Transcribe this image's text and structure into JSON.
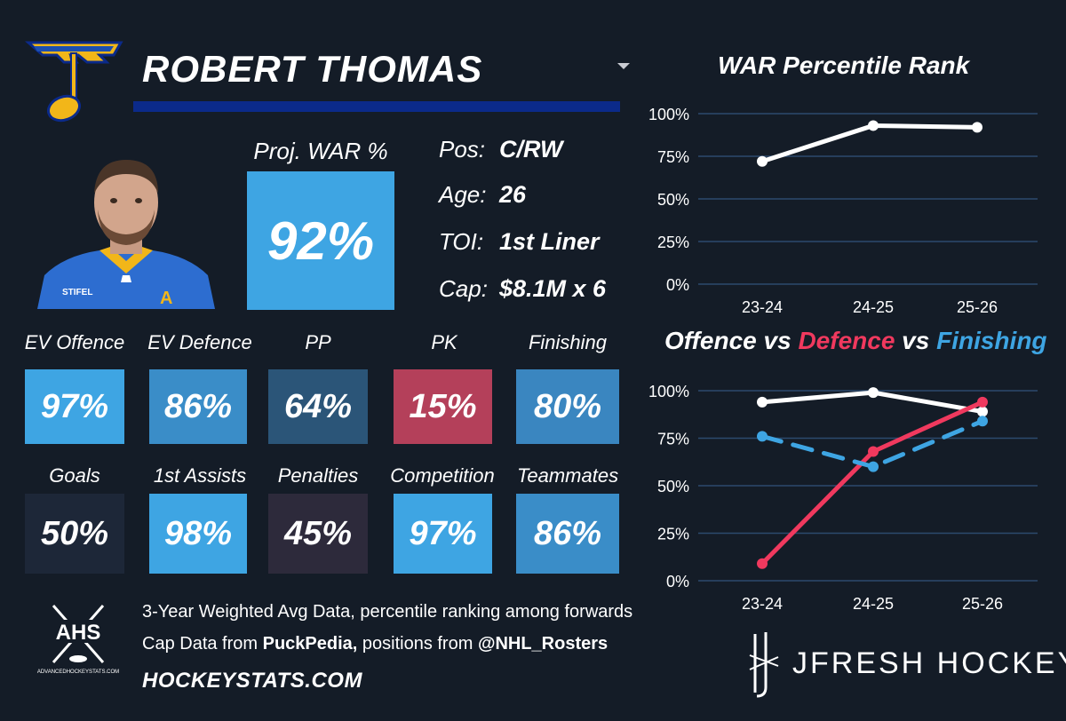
{
  "player": {
    "name": "ROBERT THOMAS",
    "team_logo": "st-louis-blues-note-logo",
    "photo": "player-headshot"
  },
  "projection": {
    "label": "Proj. WAR %",
    "value": "92%"
  },
  "info": [
    {
      "label": "Pos:",
      "value": "C/RW"
    },
    {
      "label": "Age:",
      "value": "26"
    },
    {
      "label": "TOI:",
      "value": "1st Liner"
    },
    {
      "label": "Cap:",
      "value": "$8.1M x 6"
    }
  ],
  "stats_row1": [
    {
      "label": "EV Offence",
      "value": "97%",
      "color": "#3ea5e3"
    },
    {
      "label": "EV Defence",
      "value": "86%",
      "color": "#3a8dc8"
    },
    {
      "label": "PP",
      "value": "64%",
      "color": "#2b5578"
    },
    {
      "label": "PK",
      "value": "15%",
      "color": "#b4405a"
    },
    {
      "label": "Finishing",
      "value": "80%",
      "color": "#3a86c0"
    }
  ],
  "stats_row2": [
    {
      "label": "Goals",
      "value": "50%",
      "color": "#1d2738"
    },
    {
      "label": "1st Assists",
      "value": "98%",
      "color": "#3ea5e3"
    },
    {
      "label": "Penalties",
      "value": "45%",
      "color": "#2d2a3b"
    },
    {
      "label": "Competition",
      "value": "97%",
      "color": "#3ea5e3"
    },
    {
      "label": "Teammates",
      "value": "86%",
      "color": "#3a8dc8"
    }
  ],
  "footer": {
    "line1": "3-Year Weighted Avg Data, percentile ranking among forwards",
    "line2_prefix": "Cap Data from ",
    "line2_source": "PuckPedia,",
    "line2_middle": " positions from ",
    "line2_handle": "@NHL_Rosters",
    "site": "HOCKEYSTATS.COM",
    "ahs_logo_text": "AHS",
    "ahs_logo_subtext": "ADVANCEDHOCKEYSTATS.COM",
    "brand": "JFRESH HOCKEY"
  },
  "chart_data": [
    {
      "type": "line",
      "title": "WAR Percentile Rank",
      "categories": [
        "23-24",
        "24-25",
        "25-26"
      ],
      "ylim": [
        0,
        100
      ],
      "yticks": [
        "0%",
        "25%",
        "50%",
        "75%",
        "100%"
      ],
      "grid": true,
      "series": [
        {
          "name": "WAR",
          "values": [
            72,
            93,
            92
          ],
          "color": "#ffffff",
          "dash": false
        }
      ]
    },
    {
      "type": "line",
      "title_parts": [
        {
          "text": "Offence",
          "color": "#ffffff"
        },
        {
          "text": " vs ",
          "color": "#ffffff"
        },
        {
          "text": "Defence",
          "color": "#f0395e"
        },
        {
          "text": " vs ",
          "color": "#ffffff"
        },
        {
          "text": "Finishing",
          "color": "#3ea5e3"
        }
      ],
      "categories": [
        "23-24",
        "24-25",
        "25-26"
      ],
      "ylim": [
        0,
        100
      ],
      "yticks": [
        "0%",
        "25%",
        "50%",
        "75%",
        "100%"
      ],
      "grid": true,
      "series": [
        {
          "name": "Offence",
          "values": [
            94,
            99,
            89
          ],
          "color": "#ffffff",
          "dash": false
        },
        {
          "name": "Defence",
          "values": [
            9,
            68,
            94
          ],
          "color": "#f0395e",
          "dash": false
        },
        {
          "name": "Finishing",
          "values": [
            76,
            60,
            84
          ],
          "color": "#3ea5e3",
          "dash": true
        }
      ]
    }
  ]
}
